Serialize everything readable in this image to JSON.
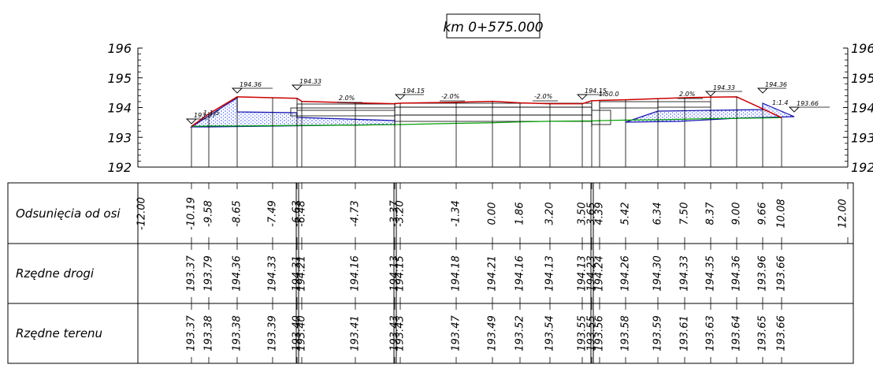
{
  "title": "km  0+575.000",
  "vertical_scale": {
    "labels": [
      "196",
      "195",
      "194",
      "193",
      "192"
    ]
  },
  "table": {
    "rows": [
      {
        "label": "Odsunięcia od osi"
      },
      {
        "label": "Rzędne drogi"
      },
      {
        "label": "Rzędne terenu"
      }
    ]
  },
  "offsets_display": [
    "-12.00",
    "-10.19",
    "-9.58",
    "-8.65",
    "-7.49",
    "-6.63",
    "-6.48",
    "-4.73",
    "-3.37",
    "-3.20",
    "-1.34",
    "0.00",
    "1.86",
    "3.20",
    "3.50",
    "3.65",
    "4.39",
    "5.42",
    "6.34",
    "7.50",
    "8.37",
    "9.00",
    "9.66",
    "10.08",
    "12.00"
  ],
  "road_levels": [
    "193.37",
    "193.79",
    "194.36",
    "194.33",
    "194.31",
    "194.21",
    "194.16",
    "194.13",
    "194.15",
    "194.18",
    "194.21",
    "194.16",
    "194.13",
    "194.13",
    "194.23",
    "194.24",
    "194.26",
    "194.30",
    "194.33",
    "194.35",
    "194.36",
    "193.96",
    "193.66"
  ],
  "terrain_levels": [
    "193.37",
    "193.38",
    "193.38",
    "193.39",
    "193.40",
    "193.40",
    "193.41",
    "193.43",
    "193.43",
    "193.47",
    "193.49",
    "193.52",
    "193.54",
    "193.55",
    "193.55",
    "193.56",
    "193.58",
    "193.59",
    "193.61",
    "193.63",
    "193.64",
    "193.65",
    "193.66"
  ],
  "annotations": {
    "slope_left": "1:1.5",
    "slope_right": "1:1.4",
    "slope_mid": "1:50.0",
    "grades": [
      "2.0%",
      "-2.0%",
      "-2.0%",
      "2.0%"
    ],
    "levels_top": [
      "194.36",
      "194.33",
      "194.15",
      "194.15",
      "194.33",
      "194.36",
      "193.66",
      "193.37"
    ]
  },
  "colors": {
    "road": "#cc0000",
    "terrain": "#00a000",
    "layer": "#1010b0",
    "fill": "#2040ff"
  },
  "chart_data": {
    "type": "cross-section",
    "title": "km  0+575.000",
    "ylim": [
      192,
      196
    ],
    "xlim": [
      -12.0,
      12.0
    ],
    "road": {
      "x": [
        -10.19,
        -9.58,
        -8.65,
        -7.49,
        -6.63,
        -6.48,
        -4.73,
        -3.37,
        -3.2,
        -1.34,
        0.0,
        1.86,
        3.2,
        3.5,
        3.65,
        4.39,
        5.42,
        6.34,
        7.5,
        8.37,
        9.0,
        9.66,
        10.08
      ],
      "y": [
        193.37,
        193.79,
        194.36,
        194.33,
        194.31,
        194.21,
        194.16,
        194.13,
        194.15,
        194.18,
        194.21,
        194.16,
        194.13,
        194.13,
        194.23,
        194.24,
        194.26,
        194.3,
        194.33,
        194.35,
        194.36,
        193.96,
        193.66
      ]
    },
    "terrain": {
      "x": [
        -10.19,
        -9.58,
        -8.65,
        -7.49,
        -6.63,
        -6.48,
        -4.73,
        -3.37,
        -3.2,
        -1.34,
        0.0,
        1.86,
        3.2,
        3.5,
        3.65,
        4.39,
        5.42,
        6.34,
        7.5,
        8.37,
        9.0,
        9.66,
        10.08
      ],
      "y": [
        193.37,
        193.38,
        193.38,
        193.39,
        193.4,
        193.4,
        193.41,
        193.43,
        193.43,
        193.47,
        193.49,
        193.52,
        193.54,
        193.55,
        193.55,
        193.56,
        193.58,
        193.59,
        193.61,
        193.63,
        193.64,
        193.65,
        193.66
      ]
    }
  }
}
